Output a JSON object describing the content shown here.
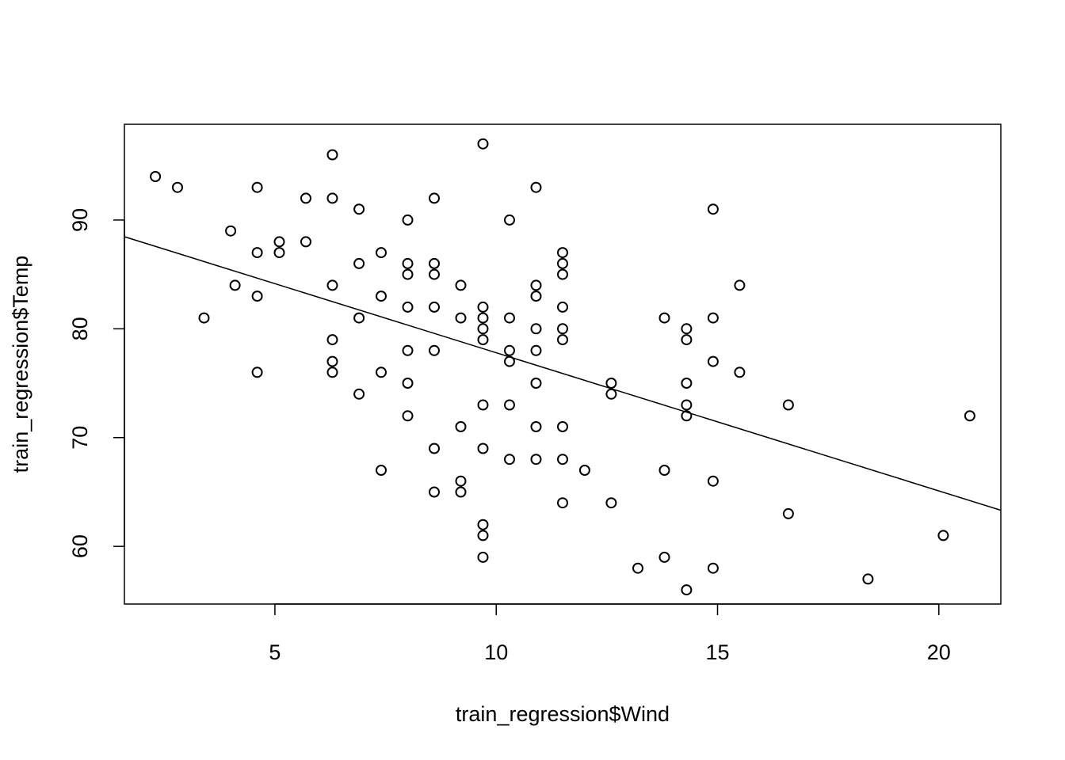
{
  "chart_data": {
    "type": "scatter",
    "title": "",
    "xlabel": "train_regression$Wind",
    "ylabel": "train_regression$Temp",
    "xlim": [
      1.6,
      21.4
    ],
    "ylim": [
      54.7,
      98.8
    ],
    "x_ticks": [
      5,
      10,
      15,
      20
    ],
    "y_ticks": [
      60,
      70,
      80,
      90
    ],
    "x_tick_labels": [
      "5",
      "10",
      "15",
      "20"
    ],
    "y_tick_labels": [
      "60",
      "70",
      "80",
      "90"
    ],
    "grid": false,
    "legend": "none",
    "marker": "open-circle",
    "color": "#000000",
    "points": [
      [
        2.3,
        94
      ],
      [
        2.8,
        93
      ],
      [
        3.4,
        81
      ],
      [
        4.0,
        89
      ],
      [
        4.1,
        84
      ],
      [
        4.6,
        93
      ],
      [
        4.6,
        87
      ],
      [
        4.6,
        83
      ],
      [
        4.6,
        76
      ],
      [
        5.1,
        88
      ],
      [
        5.1,
        87
      ],
      [
        5.7,
        92
      ],
      [
        5.7,
        88
      ],
      [
        6.3,
        96
      ],
      [
        6.3,
        92
      ],
      [
        6.3,
        84
      ],
      [
        6.3,
        79
      ],
      [
        6.3,
        77
      ],
      [
        6.3,
        76
      ],
      [
        6.9,
        91
      ],
      [
        6.9,
        86
      ],
      [
        6.9,
        81
      ],
      [
        6.9,
        74
      ],
      [
        7.4,
        87
      ],
      [
        7.4,
        83
      ],
      [
        7.4,
        76
      ],
      [
        7.4,
        67
      ],
      [
        8.0,
        90
      ],
      [
        8.0,
        86
      ],
      [
        8.0,
        85
      ],
      [
        8.0,
        82
      ],
      [
        8.0,
        78
      ],
      [
        8.0,
        75
      ],
      [
        8.0,
        72
      ],
      [
        8.6,
        92
      ],
      [
        8.6,
        86
      ],
      [
        8.6,
        85
      ],
      [
        8.6,
        82
      ],
      [
        8.6,
        78
      ],
      [
        8.6,
        69
      ],
      [
        8.6,
        65
      ],
      [
        9.2,
        84
      ],
      [
        9.2,
        81
      ],
      [
        9.2,
        71
      ],
      [
        9.2,
        66
      ],
      [
        9.2,
        65
      ],
      [
        9.7,
        97
      ],
      [
        9.7,
        82
      ],
      [
        9.7,
        81
      ],
      [
        9.7,
        80
      ],
      [
        9.7,
        79
      ],
      [
        9.7,
        73
      ],
      [
        9.7,
        69
      ],
      [
        9.7,
        62
      ],
      [
        9.7,
        61
      ],
      [
        9.7,
        59
      ],
      [
        10.3,
        90
      ],
      [
        10.3,
        81
      ],
      [
        10.3,
        78
      ],
      [
        10.3,
        77
      ],
      [
        10.3,
        73
      ],
      [
        10.3,
        68
      ],
      [
        10.9,
        93
      ],
      [
        10.9,
        84
      ],
      [
        10.9,
        83
      ],
      [
        10.9,
        80
      ],
      [
        10.9,
        78
      ],
      [
        10.9,
        75
      ],
      [
        10.9,
        71
      ],
      [
        10.9,
        68
      ],
      [
        11.5,
        87
      ],
      [
        11.5,
        86
      ],
      [
        11.5,
        85
      ],
      [
        11.5,
        82
      ],
      [
        11.5,
        80
      ],
      [
        11.5,
        79
      ],
      [
        11.5,
        71
      ],
      [
        11.5,
        68
      ],
      [
        11.5,
        64
      ],
      [
        12.0,
        67
      ],
      [
        12.6,
        75
      ],
      [
        12.6,
        74
      ],
      [
        12.6,
        64
      ],
      [
        13.2,
        58
      ],
      [
        13.8,
        81
      ],
      [
        13.8,
        67
      ],
      [
        13.8,
        59
      ],
      [
        14.3,
        80
      ],
      [
        14.3,
        79
      ],
      [
        14.3,
        75
      ],
      [
        14.3,
        73
      ],
      [
        14.3,
        72
      ],
      [
        14.3,
        56
      ],
      [
        14.9,
        91
      ],
      [
        14.9,
        81
      ],
      [
        14.9,
        77
      ],
      [
        14.9,
        66
      ],
      [
        14.9,
        58
      ],
      [
        15.5,
        84
      ],
      [
        15.5,
        76
      ],
      [
        16.6,
        73
      ],
      [
        16.6,
        63
      ],
      [
        18.4,
        57
      ],
      [
        20.1,
        61
      ],
      [
        20.7,
        72
      ]
    ],
    "regression_line": {
      "intercept": 90.5,
      "slope": -1.27
    }
  }
}
